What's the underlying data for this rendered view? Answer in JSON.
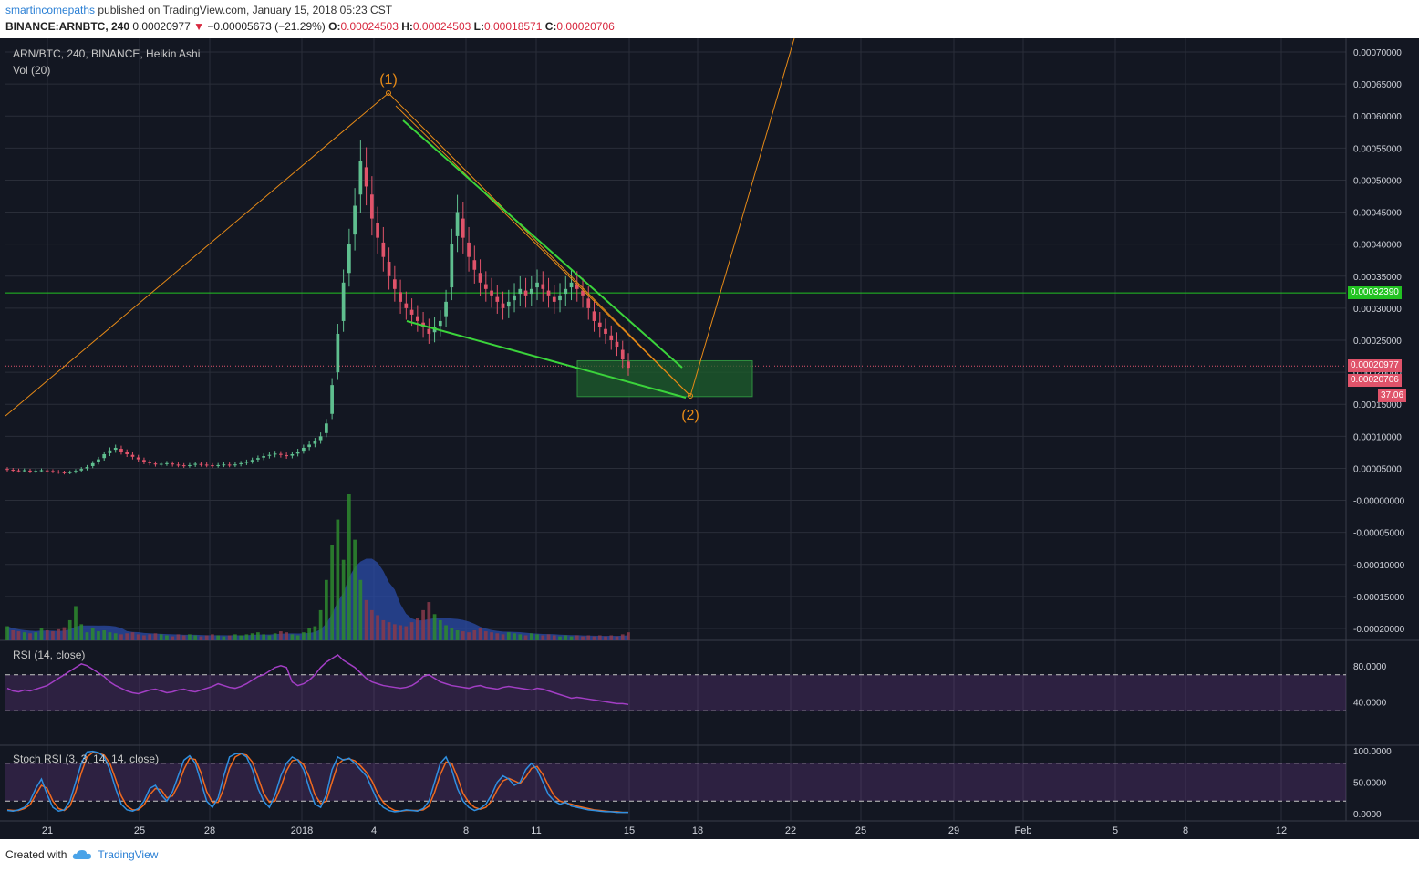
{
  "header": {
    "author": "smartincomepaths",
    "published": "published on TradingView.com, January 15, 2018 05:23 CST",
    "symbol_line": "BINANCE:ARNBTC, 240",
    "last": "0.00020977",
    "change": "−0.00005673 (−21.29%)",
    "o_label": "O:",
    "o": "0.00024503",
    "h_label": "H:",
    "h": "0.00024503",
    "l_label": "L:",
    "l": "0.00018571",
    "c_label": "C:",
    "c": "0.00020706"
  },
  "panes": {
    "main_title": "ARN/BTC, 240, BINANCE, Heikin Ashi",
    "vol_title": "Vol (20)",
    "rsi_title": "RSI (14, close)",
    "stoch_title": "Stoch RSI (3, 3, 14, 14, close)"
  },
  "annotations": {
    "wave1": "(1)",
    "wave2": "(2)"
  },
  "price_tags": {
    "hline": "0.00032390",
    "last": "0.00020977",
    "close": "0.00020706",
    "rsi_value": "37.06"
  },
  "footer": {
    "created_with": "Created with",
    "brand": "TradingView"
  },
  "colors": {
    "background": "#131722",
    "up": "#5fbf8f",
    "down": "#e0536a",
    "trend_green": "#3bd43b",
    "projection": "#e68a17",
    "rsi_line": "#a23ec4",
    "stoch_k": "#2f8fe0",
    "stoch_d": "#f06a1e",
    "volume_ma": "#2b4ca8",
    "target_box": "#1d5f2c"
  },
  "chart_data": [
    {
      "type": "candlestick",
      "title": "ARN/BTC, 240, BINANCE, Heikin Ashi",
      "x_ticks": [
        "21",
        "25",
        "28",
        "2018",
        "4",
        "8",
        "11",
        "15",
        "18",
        "22",
        "25",
        "29",
        "Feb",
        "5",
        "8",
        "12"
      ],
      "y_ticks": [
        "0.00070000",
        "0.00065000",
        "0.00060000",
        "0.00055000",
        "0.00050000",
        "0.00045000",
        "0.00040000",
        "0.00035000",
        "0.00030000",
        "0.00025000",
        "0.00020000",
        "0.00015000",
        "0.00010000",
        "0.00005000",
        "-0.00000000",
        "-0.00005000",
        "-0.00010000",
        "-0.00015000",
        "-0.00020000"
      ],
      "ylim": [
        -0.0002,
        0.0007
      ],
      "horizontal_line": 0.0003239,
      "last_price": 0.00020977,
      "series_close": [
        4.8e-05,
        4.7e-05,
        4.6e-05,
        4.7e-05,
        4.5e-05,
        4.6e-05,
        4.7e-05,
        4.6e-05,
        4.5e-05,
        4.4e-05,
        4.3e-05,
        4.4e-05,
        4.6e-05,
        4.9e-05,
        5.2e-05,
        5.8e-05,
        6.4e-05,
        7.2e-05,
        7.8e-05,
        8.2e-05,
        7.6e-05,
        7.2e-05,
        6.8e-05,
        6.4e-05,
        6e-05,
        5.8e-05,
        5.6e-05,
        5.7e-05,
        5.8e-05,
        5.6e-05,
        5.5e-05,
        5.4e-05,
        5.5e-05,
        5.7e-05,
        5.6e-05,
        5.5e-05,
        5.4e-05,
        5.5e-05,
        5.6e-05,
        5.5e-05,
        5.6e-05,
        5.8e-05,
        6e-05,
        6.3e-05,
        6.6e-05,
        6.9e-05,
        7.1e-05,
        7.3e-05,
        7.1e-05,
        6.9e-05,
        7.2e-05,
        7.6e-05,
        8.2e-05,
        8.7e-05,
        9.2e-05,
        0.0001,
        0.00012,
        0.00018,
        0.00026,
        0.00034,
        0.0004,
        0.00046,
        0.00053,
        0.00049,
        0.00044,
        0.00041,
        0.00038,
        0.00035,
        0.00033,
        0.00031,
        0.0003,
        0.00029,
        0.00028,
        0.00027,
        0.00026,
        0.00027,
        0.00028,
        0.00031,
        0.0004,
        0.00045,
        0.00041,
        0.00038,
        0.00036,
        0.00034,
        0.00033,
        0.00032,
        0.00031,
        0.0003,
        0.00031,
        0.00032,
        0.00033,
        0.00032,
        0.00033,
        0.00034,
        0.00033,
        0.00032,
        0.00031,
        0.00032,
        0.00033,
        0.00034,
        0.00033,
        0.00032,
        0.0003,
        0.00028,
        0.00027,
        0.00026,
        0.00025,
        0.00024,
        0.00022,
        0.00020706
      ],
      "series_volume": [
        14,
        10,
        9,
        8,
        7,
        8,
        12,
        10,
        9,
        11,
        13,
        20,
        34,
        16,
        8,
        12,
        9,
        10,
        8,
        7,
        6,
        7,
        8,
        6,
        5,
        6,
        7,
        6,
        5,
        4,
        6,
        5,
        6,
        5,
        4,
        5,
        6,
        5,
        4,
        5,
        6,
        5,
        6,
        7,
        8,
        6,
        5,
        7,
        9,
        8,
        6,
        5,
        8,
        12,
        14,
        30,
        60,
        95,
        120,
        80,
        145,
        100,
        60,
        40,
        30,
        25,
        20,
        18,
        16,
        15,
        14,
        18,
        22,
        30,
        38,
        26,
        20,
        15,
        12,
        10,
        9,
        8,
        10,
        12,
        9,
        8,
        7,
        6,
        8,
        7,
        6,
        5,
        7,
        6,
        5,
        6,
        5,
        4,
        5,
        4,
        5,
        4,
        5,
        4,
        5,
        4,
        5,
        4,
        6,
        8
      ],
      "series_rsi": [
        55,
        52,
        51,
        53,
        52,
        54,
        56,
        58,
        62,
        66,
        70,
        74,
        78,
        82,
        80,
        76,
        72,
        68,
        62,
        58,
        55,
        52,
        50,
        49,
        51,
        53,
        54,
        52,
        50,
        51,
        53,
        54,
        52,
        51,
        53,
        55,
        57,
        60,
        58,
        56,
        55,
        57,
        60,
        64,
        68,
        70,
        74,
        78,
        80,
        78,
        62,
        58,
        60,
        64,
        70,
        78,
        84,
        88,
        92,
        86,
        82,
        78,
        72,
        66,
        62,
        60,
        58,
        57,
        56,
        55,
        56,
        58,
        62,
        68,
        70,
        66,
        62,
        60,
        58,
        57,
        56,
        55,
        57,
        58,
        56,
        55,
        54,
        56,
        57,
        56,
        55,
        54,
        53,
        55,
        54,
        52,
        50,
        48,
        46,
        44,
        45,
        44,
        43,
        42,
        41,
        40,
        39,
        38,
        38,
        37.06
      ],
      "series_stoch_k": [
        5,
        4,
        6,
        10,
        20,
        40,
        55,
        30,
        10,
        4,
        6,
        20,
        50,
        80,
        98,
        99,
        97,
        90,
        70,
        40,
        15,
        6,
        4,
        8,
        20,
        40,
        45,
        30,
        20,
        35,
        60,
        85,
        92,
        80,
        50,
        20,
        10,
        25,
        60,
        90,
        95,
        96,
        90,
        70,
        40,
        20,
        10,
        30,
        60,
        80,
        90,
        85,
        70,
        40,
        15,
        10,
        30,
        70,
        90,
        85,
        88,
        80,
        70,
        60,
        40,
        20,
        10,
        5,
        3,
        4,
        6,
        5,
        4,
        8,
        20,
        50,
        80,
        90,
        70,
        40,
        20,
        10,
        5,
        8,
        15,
        30,
        50,
        60,
        55,
        45,
        50,
        70,
        80,
        70,
        50,
        30,
        20,
        15,
        18,
        12,
        10,
        8,
        6,
        5,
        4,
        3,
        3,
        2,
        2,
        2
      ],
      "series_stoch_d": [
        6,
        5,
        5,
        8,
        14,
        30,
        45,
        40,
        20,
        8,
        5,
        12,
        35,
        65,
        90,
        97,
        96,
        93,
        80,
        55,
        28,
        12,
        6,
        6,
        14,
        30,
        40,
        38,
        25,
        28,
        45,
        70,
        88,
        86,
        65,
        35,
        18,
        18,
        40,
        72,
        90,
        95,
        93,
        82,
        58,
        32,
        18,
        20,
        42,
        68,
        84,
        86,
        78,
        58,
        30,
        16,
        20,
        50,
        78,
        86,
        87,
        84,
        76,
        66,
        52,
        32,
        18,
        10,
        5,
        4,
        5,
        5,
        5,
        6,
        12,
        34,
        62,
        82,
        80,
        58,
        32,
        18,
        10,
        7,
        10,
        20,
        38,
        52,
        56,
        52,
        48,
        58,
        72,
        75,
        62,
        44,
        28,
        20,
        17,
        15,
        12,
        10,
        8,
        6,
        5,
        4,
        3,
        3,
        2,
        2
      ],
      "annotations": [
        "(1)",
        "(2)"
      ]
    },
    {
      "type": "line",
      "title": "RSI (14, close)",
      "y_ticks": [
        "80.0000",
        "40.0000"
      ],
      "ylim": [
        0,
        100
      ]
    },
    {
      "type": "line",
      "title": "Stoch RSI (3, 3, 14, 14, close)",
      "y_ticks": [
        "100.0000",
        "50.0000",
        "0.0000"
      ],
      "ylim": [
        0,
        100
      ]
    }
  ]
}
